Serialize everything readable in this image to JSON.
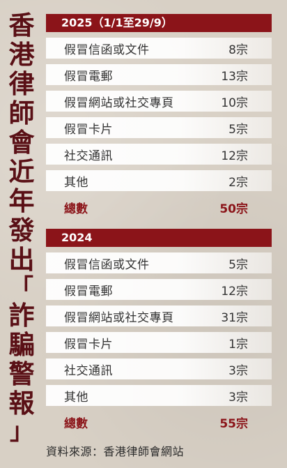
{
  "side_title": [
    "香",
    "港",
    "律",
    "師",
    "會",
    "近",
    "年",
    "發",
    "出",
    "「",
    "詐",
    "騙",
    "警",
    "報",
    "」"
  ],
  "panels": [
    {
      "year": "2025（1/1至29/9）",
      "rows": [
        {
          "label": "假冒信函或文件",
          "value": "8宗"
        },
        {
          "label": "假冒電郵",
          "value": "13宗"
        },
        {
          "label": "假冒網站或社交專頁",
          "value": "10宗"
        },
        {
          "label": "假冒卡片",
          "value": "5宗"
        },
        {
          "label": "社交通訊",
          "value": "12宗"
        },
        {
          "label": "其他",
          "value": "2宗"
        }
      ],
      "total_label": "總數",
      "total_value": "50宗"
    },
    {
      "year": "2024",
      "rows": [
        {
          "label": "假冒信函或文件",
          "value": "5宗"
        },
        {
          "label": "假冒電郵",
          "value": "12宗"
        },
        {
          "label": "假冒網站或社交專頁",
          "value": "31宗"
        },
        {
          "label": "假冒卡片",
          "value": "1宗"
        },
        {
          "label": "社交通訊",
          "value": "3宗"
        },
        {
          "label": "其他",
          "value": "3宗"
        }
      ],
      "total_label": "總數",
      "total_value": "55宗"
    }
  ],
  "source": "資料來源：香港律師會網站",
  "colors": {
    "accent": "#8b1419",
    "title": "#5a1016",
    "background": "#d8d0c5"
  }
}
